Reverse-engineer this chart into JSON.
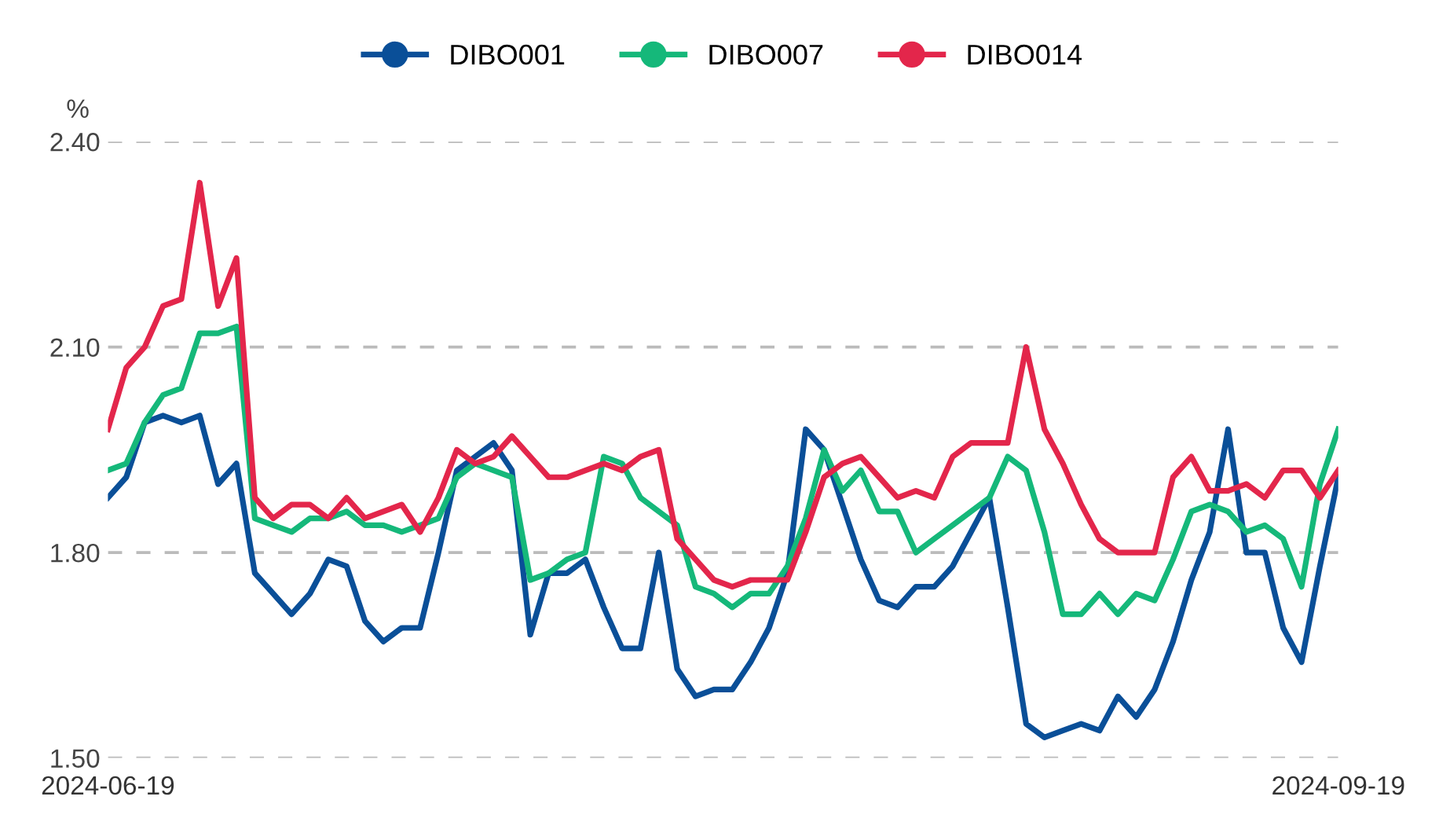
{
  "chart_data": {
    "type": "line",
    "ylabel": "%",
    "categories": [
      "2024-06-19",
      null,
      null,
      null,
      null,
      null,
      null,
      null,
      null,
      null,
      null,
      null,
      null,
      null,
      null,
      null,
      null,
      null,
      null,
      null,
      null,
      null,
      null,
      null,
      null,
      null,
      null,
      null,
      null,
      null,
      null,
      null,
      null,
      null,
      null,
      null,
      null,
      null,
      null,
      null,
      null,
      null,
      null,
      null,
      null,
      null,
      null,
      null,
      null,
      null,
      null,
      null,
      null,
      null,
      null,
      null,
      null,
      null,
      null,
      null,
      null,
      null,
      null,
      null,
      null,
      null,
      null,
      "2024-09-19"
    ],
    "series": [
      {
        "name": "DIBO001",
        "color": "#0a4f98",
        "values": [
          1.88,
          1.91,
          1.99,
          2.0,
          1.99,
          2.0,
          1.9,
          1.93,
          1.77,
          1.74,
          1.71,
          1.74,
          1.79,
          1.78,
          1.7,
          1.67,
          1.69,
          1.69,
          1.8,
          1.92,
          1.94,
          1.96,
          1.92,
          1.68,
          1.77,
          1.77,
          1.79,
          1.72,
          1.66,
          1.66,
          1.8,
          1.63,
          1.59,
          1.6,
          1.6,
          1.64,
          1.69,
          1.77,
          1.98,
          1.95,
          1.87,
          1.79,
          1.73,
          1.72,
          1.75,
          1.75,
          1.78,
          1.83,
          1.88,
          1.72,
          1.55,
          1.53,
          1.54,
          1.55,
          1.54,
          1.59,
          1.56,
          1.6,
          1.67,
          1.76,
          1.83,
          1.98,
          1.8,
          1.8,
          1.69,
          1.64,
          1.78,
          1.91
        ]
      },
      {
        "name": "DIBO007",
        "color": "#15b87a",
        "values": [
          1.92,
          1.93,
          1.99,
          2.03,
          2.04,
          2.12,
          2.12,
          2.13,
          1.85,
          1.84,
          1.83,
          1.85,
          1.85,
          1.86,
          1.84,
          1.84,
          1.83,
          1.84,
          1.85,
          1.91,
          1.93,
          1.92,
          1.91,
          1.76,
          1.77,
          1.79,
          1.8,
          1.94,
          1.93,
          1.88,
          1.86,
          1.84,
          1.75,
          1.74,
          1.72,
          1.74,
          1.74,
          1.78,
          1.85,
          1.95,
          1.89,
          1.92,
          1.86,
          1.86,
          1.8,
          1.82,
          1.84,
          1.86,
          1.88,
          1.94,
          1.92,
          1.83,
          1.71,
          1.71,
          1.74,
          1.71,
          1.74,
          1.73,
          1.79,
          1.86,
          1.87,
          1.86,
          1.83,
          1.84,
          1.82,
          1.75,
          1.9,
          1.98
        ]
      },
      {
        "name": "DIBO014",
        "color": "#e3264b",
        "values": [
          1.98,
          2.07,
          2.1,
          2.16,
          2.17,
          2.34,
          2.16,
          2.23,
          1.88,
          1.85,
          1.87,
          1.87,
          1.85,
          1.88,
          1.85,
          1.86,
          1.87,
          1.83,
          1.88,
          1.95,
          1.93,
          1.94,
          1.97,
          1.94,
          1.91,
          1.91,
          1.92,
          1.93,
          1.92,
          1.94,
          1.95,
          1.82,
          1.79,
          1.76,
          1.75,
          1.76,
          1.76,
          1.76,
          1.83,
          1.91,
          1.93,
          1.94,
          1.91,
          1.88,
          1.89,
          1.88,
          1.94,
          1.96,
          1.96,
          1.96,
          2.1,
          1.98,
          1.93,
          1.87,
          1.82,
          1.8,
          1.8,
          1.8,
          1.91,
          1.94,
          1.89,
          1.89,
          1.9,
          1.88,
          1.92,
          1.92,
          1.88,
          1.92
        ]
      }
    ],
    "ylim": [
      1.5,
      2.4
    ],
    "yticks": [
      {
        "value": 1.5,
        "label": "1.50"
      },
      {
        "value": 1.8,
        "label": "1.80"
      },
      {
        "value": 2.1,
        "label": "2.10"
      },
      {
        "value": 2.4,
        "label": "2.40"
      }
    ],
    "grid": "y",
    "legend": "top",
    "marker": "none",
    "line_style": "solid"
  }
}
